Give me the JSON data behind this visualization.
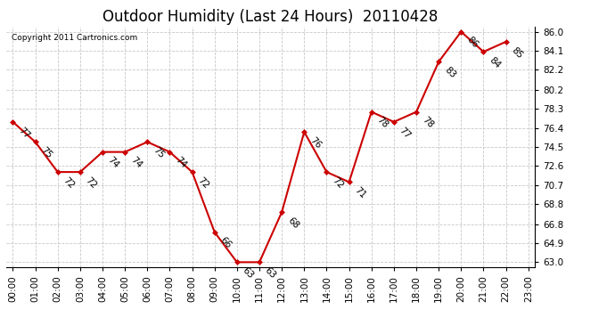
{
  "title": "Outdoor Humidity (Last 24 Hours)  20110428",
  "copyright": "Copyright 2011 Cartronics.com",
  "x_labels": [
    "00:00",
    "01:00",
    "02:00",
    "03:00",
    "04:00",
    "05:00",
    "06:00",
    "07:00",
    "08:00",
    "09:00",
    "10:00",
    "11:00",
    "12:00",
    "13:00",
    "14:00",
    "15:00",
    "16:00",
    "17:00",
    "18:00",
    "19:00",
    "20:00",
    "21:00",
    "22:00",
    "23:00"
  ],
  "y_values": [
    77,
    75,
    72,
    72,
    74,
    74,
    75,
    74,
    72,
    66,
    63,
    63,
    68,
    76,
    72,
    71,
    78,
    77,
    78,
    83,
    86,
    84,
    85
  ],
  "y_labels": [
    "77",
    "75",
    "72",
    "72",
    "74",
    "74",
    "75",
    "74",
    "72",
    "66",
    "63",
    "63",
    "68",
    "76",
    "72",
    "71",
    "78",
    "77",
    "78",
    "83",
    "86",
    "84",
    "85"
  ],
  "y_ticks": [
    63.0,
    64.9,
    66.8,
    68.8,
    70.7,
    72.6,
    74.5,
    76.4,
    78.3,
    80.2,
    82.2,
    84.1,
    86.0
  ],
  "ylim": [
    62.5,
    86.5
  ],
  "xlim": [
    -0.3,
    23.3
  ],
  "line_color": "#cc0000",
  "marker_color": "#cc0000",
  "background_color": "#ffffff",
  "grid_color": "#c8c8c8",
  "title_fontsize": 12,
  "annotation_fontsize": 7.5,
  "tick_fontsize": 7.5,
  "copyright_fontsize": 6.5
}
